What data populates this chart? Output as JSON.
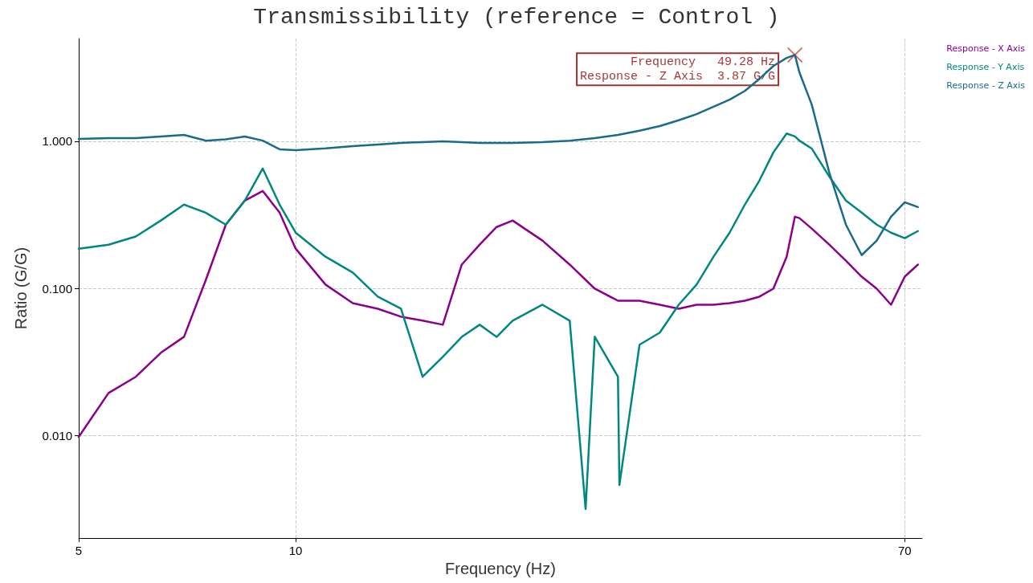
{
  "chart_data": {
    "type": "line",
    "title": "Transmissibility (reference = Control )",
    "xlabel": "Frequency (Hz)",
    "ylabel": "Ratio (G/G)",
    "log": "xy",
    "grid": true,
    "legend": "top right",
    "line_style": "solid",
    "xlim": [
      5,
      74
    ],
    "xticks": [
      5,
      10,
      70
    ],
    "ylim": [
      0.002,
      5
    ],
    "yticks": [
      {
        "value": 0.01,
        "label": "0.010"
      },
      {
        "value": 0.1,
        "label": "0.100"
      },
      {
        "value": 1,
        "label": "1.000"
      }
    ],
    "annotations": [
      {
        "text": "Frequency   49.28 Hz\nResponse - Z Axis  3.87 G/G",
        "x": 49.28,
        "y": 3.87
      }
    ],
    "series": [
      {
        "name": "Response - X Axis",
        "color": "#8b008b",
        "x": [
          5,
          5.5,
          6,
          6.5,
          7,
          7.5,
          8,
          8.5,
          9,
          9.5,
          10,
          11,
          12,
          13,
          14,
          15,
          16,
          17,
          18,
          19,
          20,
          22,
          24,
          26,
          28,
          30,
          32,
          34,
          36,
          38,
          40,
          42,
          44,
          46,
          48,
          49.28,
          50,
          52,
          55,
          58,
          61,
          64,
          67,
          70,
          73
        ],
        "values": [
          0.00975,
          0.0194,
          0.025,
          0.0364,
          0.0468,
          0.113,
          0.271,
          0.395,
          0.459,
          0.327,
          0.186,
          0.106,
          0.0793,
          0.0726,
          0.0641,
          0.0602,
          0.0565,
          0.145,
          0.198,
          0.261,
          0.289,
          0.211,
          0.145,
          0.0994,
          0.0823,
          0.0823,
          0.0773,
          0.0726,
          0.0773,
          0.0773,
          0.0793,
          0.0823,
          0.0877,
          0.0994,
          0.164,
          0.307,
          0.3,
          0.255,
          0.198,
          0.154,
          0.12,
          0.0994,
          0.0773,
          0.12,
          0.145
        ]
      },
      {
        "name": "Response - Y Axis",
        "color": "#00877f",
        "x": [
          5,
          5.5,
          6,
          6.5,
          7,
          7.5,
          8,
          8.5,
          9,
          9.5,
          10,
          11,
          12,
          13,
          14,
          15,
          16,
          17,
          18,
          19,
          20,
          22,
          24,
          25.25,
          26,
          28,
          28.13,
          30,
          32,
          34,
          36,
          38,
          40,
          42,
          44,
          46,
          48,
          49.28,
          50,
          52,
          55,
          58,
          61,
          64,
          67,
          70,
          73
        ],
        "values": [
          0.186,
          0.198,
          0.225,
          0.289,
          0.371,
          0.327,
          0.271,
          0.395,
          0.653,
          0.371,
          0.239,
          0.164,
          0.128,
          0.0877,
          0.0726,
          0.025,
          0.0342,
          0.0467,
          0.0565,
          0.0467,
          0.0602,
          0.0773,
          0.0602,
          0.00315,
          0.0468,
          0.025,
          0.00459,
          0.0413,
          0.0499,
          0.0773,
          0.106,
          0.164,
          0.239,
          0.371,
          0.541,
          0.839,
          1.13,
          1.08,
          1.01,
          0.893,
          0.576,
          0.395,
          0.327,
          0.271,
          0.239,
          0.219,
          0.245
        ]
      },
      {
        "name": "Response - Z Axis",
        "color": "#1a6a8a",
        "x": [
          5,
          5.5,
          6,
          6.5,
          7,
          7.5,
          8,
          8.5,
          9,
          9.5,
          10,
          11,
          12,
          13,
          14,
          15,
          16,
          17,
          18,
          19,
          20,
          22,
          24,
          26,
          28,
          30,
          32,
          34,
          36,
          38,
          40,
          42,
          44,
          46,
          48,
          49.28,
          50,
          52,
          55,
          58,
          61,
          64,
          67,
          70,
          73
        ],
        "values": [
          1.038,
          1.05,
          1.05,
          1.078,
          1.105,
          1.01,
          1.03,
          1.078,
          1.01,
          0.882,
          0.871,
          0.894,
          0.928,
          0.951,
          0.975,
          0.988,
          1.0,
          0.988,
          0.975,
          0.975,
          0.975,
          0.988,
          1.01,
          1.05,
          1.105,
          1.18,
          1.27,
          1.39,
          1.53,
          1.72,
          1.92,
          2.2,
          2.66,
          3.25,
          3.69,
          3.87,
          2.94,
          1.78,
          0.613,
          0.271,
          0.168,
          0.211,
          0.307,
          0.385,
          0.357
        ]
      }
    ]
  }
}
